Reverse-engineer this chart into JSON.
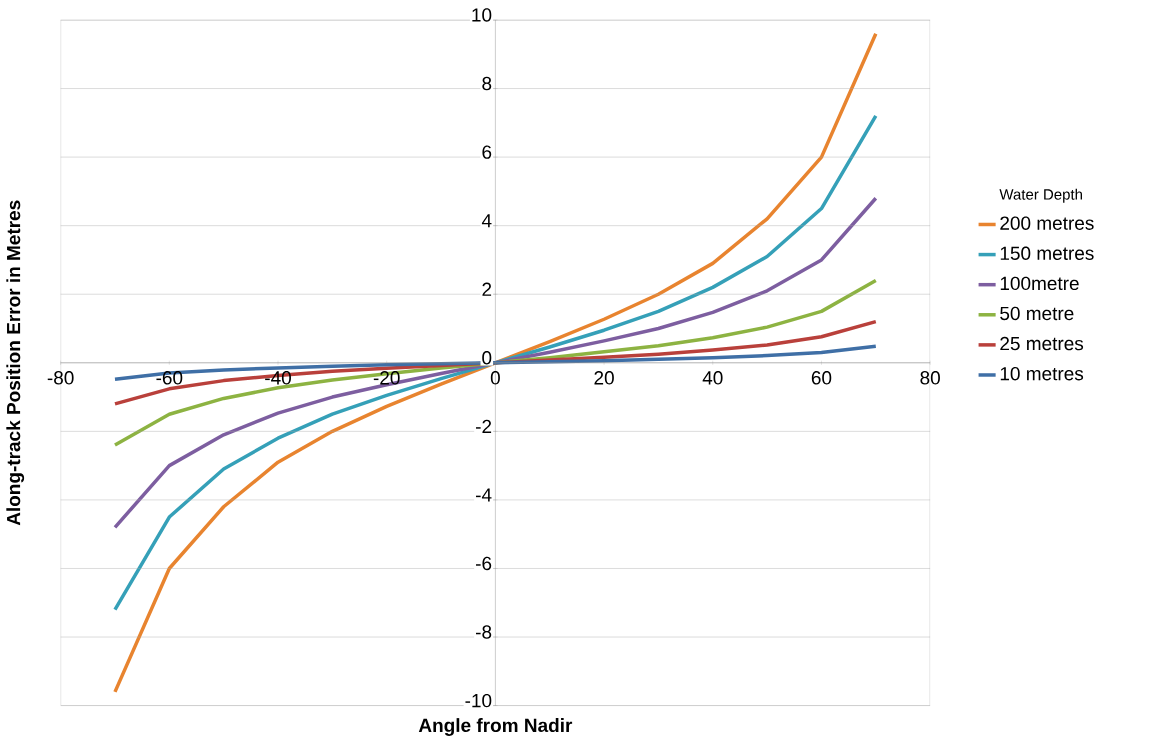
{
  "chart_data": {
    "type": "line",
    "xlabel": "Angle from Nadir",
    "ylabel": "Along-track Position Error in Metres",
    "legend_title": "Water Depth",
    "x": [
      -70,
      -60,
      -50,
      -40,
      -30,
      -20,
      -10,
      0,
      10,
      20,
      30,
      40,
      50,
      60,
      70
    ],
    "series": [
      {
        "name": "200 metres",
        "color": "#e8842f",
        "values": [
          -9.6,
          -6.0,
          -4.2,
          -2.9,
          -2.0,
          -1.27,
          -0.62,
          0,
          0.62,
          1.27,
          2.0,
          2.9,
          4.2,
          6.0,
          9.6
        ]
      },
      {
        "name": "150 metres",
        "color": "#35a0b8",
        "values": [
          -7.2,
          -4.5,
          -3.1,
          -2.2,
          -1.5,
          -0.95,
          -0.46,
          0,
          0.46,
          0.95,
          1.5,
          2.2,
          3.1,
          4.5,
          7.2
        ]
      },
      {
        "name": "100metre",
        "color": "#7d5ea0",
        "values": [
          -4.8,
          -3.0,
          -2.1,
          -1.47,
          -1.0,
          -0.64,
          -0.31,
          0,
          0.31,
          0.64,
          1.0,
          1.47,
          2.1,
          3.0,
          4.8
        ]
      },
      {
        "name": "50 metre",
        "color": "#8db342",
        "values": [
          -2.4,
          -1.5,
          -1.04,
          -0.73,
          -0.5,
          -0.32,
          -0.15,
          0,
          0.15,
          0.32,
          0.5,
          0.73,
          1.04,
          1.5,
          2.4
        ]
      },
      {
        "name": "25 metres",
        "color": "#b9403b",
        "values": [
          -1.2,
          -0.76,
          -0.52,
          -0.37,
          -0.25,
          -0.16,
          -0.08,
          0,
          0.08,
          0.16,
          0.25,
          0.37,
          0.52,
          0.76,
          1.2
        ]
      },
      {
        "name": "10 metres",
        "color": "#3f6fa6",
        "values": [
          -0.48,
          -0.3,
          -0.21,
          -0.15,
          -0.1,
          -0.06,
          -0.03,
          0,
          0.03,
          0.06,
          0.1,
          0.15,
          0.21,
          0.3,
          0.48
        ]
      }
    ],
    "xlim": [
      -80,
      80
    ],
    "xticks": [
      -80,
      -60,
      -40,
      -20,
      0,
      20,
      40,
      60,
      80
    ],
    "ylim": [
      -10,
      10
    ],
    "yticks": [
      -10,
      -8,
      -6,
      -4,
      -2,
      0,
      2,
      4,
      6,
      8,
      10
    ],
    "grid": "y",
    "legend": "right",
    "marker": "none",
    "line_style": "solid"
  }
}
